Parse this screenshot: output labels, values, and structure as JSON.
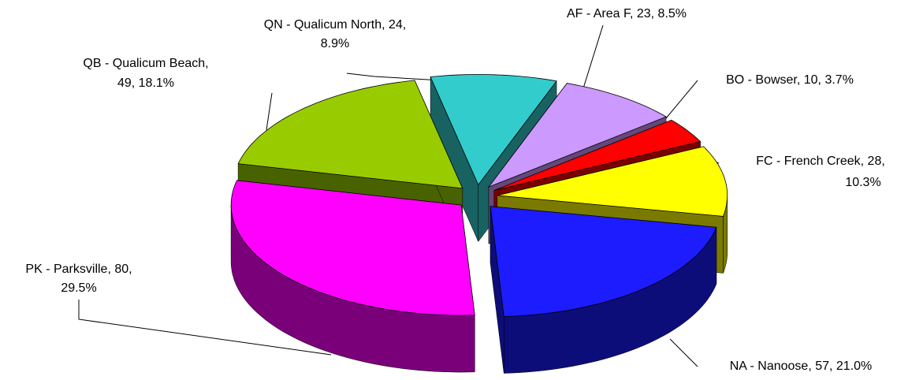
{
  "chart_data": {
    "type": "pie",
    "values": [
      24,
      23,
      10,
      28,
      57,
      80,
      49
    ],
    "colors": [
      "#33cccc",
      "#cc99ff",
      "#ff0000",
      "#ffff00",
      "#1c1cff",
      "#ff00ff",
      "#99cc00"
    ],
    "data_labels": [
      [
        "QN - Qualicum North, 24,",
        "8.9%"
      ],
      [
        "AF - Area F, 23, 8.5%"
      ],
      [
        "BO - Bowser, 10, 3.7%"
      ],
      [
        "FC - French Creek, 28,",
        "10.3%"
      ],
      [
        "NA - Nanoose, 57, 21.0%"
      ],
      [
        "PK - Parksville, 80,",
        "29.5%"
      ],
      [
        "QB - Qualicum Beach,",
        "49, 18.1%"
      ]
    ]
  }
}
